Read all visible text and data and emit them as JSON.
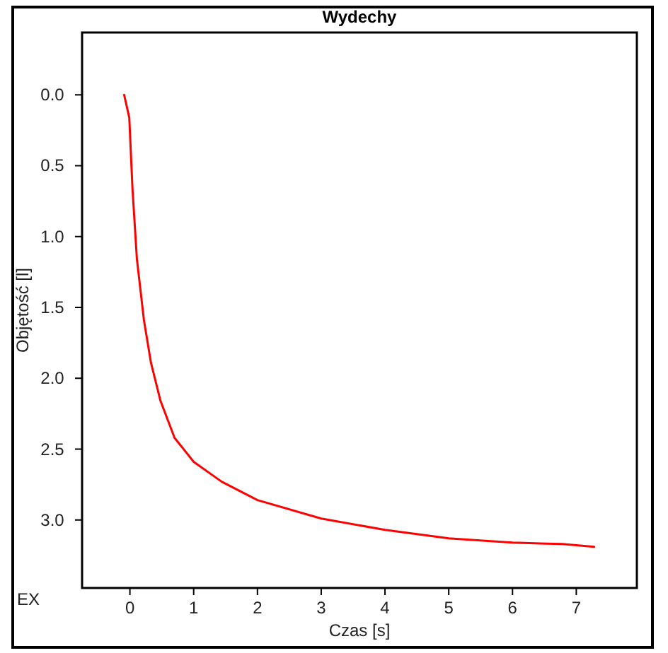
{
  "chart_data": {
    "type": "line",
    "title": "Wydechy",
    "xlabel": "Czas [s]",
    "ylabel": "Objętość [l]",
    "annotations": [
      "EX"
    ],
    "x": [
      -0.09,
      -0.01,
      0.04,
      0.11,
      0.22,
      0.33,
      0.48,
      0.7,
      1.0,
      1.44,
      2.0,
      3.0,
      4.0,
      5.0,
      6.0,
      6.78,
      7.28
    ],
    "series": [
      {
        "color": "#ff0000",
        "values": [
          0,
          0.16,
          0.66,
          1.16,
          1.59,
          1.89,
          2.16,
          2.42,
          2.59,
          2.73,
          2.86,
          2.99,
          3.07,
          3.13,
          3.16,
          3.17,
          3.19
        ]
      }
    ],
    "xlim": [
      -0.75,
      7.95
    ],
    "ylim": [
      3.48,
      -0.44
    ],
    "xticks": [
      0,
      1,
      2,
      3,
      4,
      5,
      6,
      7
    ],
    "yticks": [
      {
        "value": 0,
        "label": "0.0"
      },
      {
        "value": 0.5,
        "label": "0.5"
      },
      {
        "value": 1,
        "label": "1.0"
      },
      {
        "value": 1.5,
        "label": "1.5"
      },
      {
        "value": 2,
        "label": "2.0"
      },
      {
        "value": 2.5,
        "label": "2.5"
      },
      {
        "value": 3,
        "label": "3.0"
      }
    ],
    "marker": "none",
    "line_style": "solid"
  }
}
